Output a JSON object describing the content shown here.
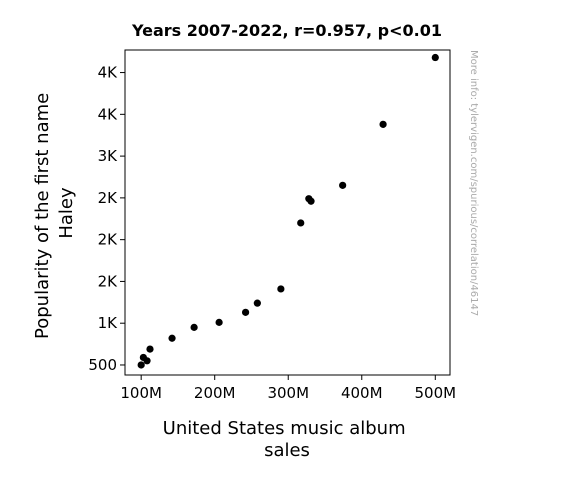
{
  "chart_data": {
    "type": "scatter",
    "title": "Years 2007-2022, r=0.957, p<0.01",
    "xlabel": [
      "United States music album",
      "sales"
    ],
    "ylabel": [
      "Popularity of the first name",
      "Haley"
    ],
    "watermark": "More info: tylervigen.com/spurious/correlation/46147",
    "xlim": [
      78,
      520
    ],
    "ylim": [
      380,
      4270
    ],
    "x_ticks": [
      {
        "value": 100,
        "label": "100M"
      },
      {
        "value": 200,
        "label": "200M"
      },
      {
        "value": 300,
        "label": "300M"
      },
      {
        "value": 400,
        "label": "400M"
      },
      {
        "value": 500,
        "label": "500M"
      }
    ],
    "y_ticks": [
      {
        "value": 500,
        "label": "500"
      },
      {
        "value": 1000,
        "label": "1K"
      },
      {
        "value": 1500,
        "label": "2K"
      },
      {
        "value": 2000,
        "label": "2K"
      },
      {
        "value": 2500,
        "label": "2K"
      },
      {
        "value": 3000,
        "label": "3K"
      },
      {
        "value": 3500,
        "label": "4K"
      },
      {
        "value": 4000,
        "label": "4K"
      }
    ],
    "grid": false,
    "marker_color": "#000000",
    "points": [
      {
        "x": 500,
        "y": 4180
      },
      {
        "x": 429,
        "y": 3380
      },
      {
        "x": 374,
        "y": 2650
      },
      {
        "x": 331,
        "y": 2460
      },
      {
        "x": 328,
        "y": 2490
      },
      {
        "x": 317,
        "y": 2200
      },
      {
        "x": 290,
        "y": 1410
      },
      {
        "x": 258,
        "y": 1240
      },
      {
        "x": 242,
        "y": 1130
      },
      {
        "x": 206,
        "y": 1010
      },
      {
        "x": 172,
        "y": 950
      },
      {
        "x": 142,
        "y": 820
      },
      {
        "x": 112,
        "y": 690
      },
      {
        "x": 103,
        "y": 590
      },
      {
        "x": 108,
        "y": 550
      },
      {
        "x": 100,
        "y": 500
      }
    ]
  }
}
